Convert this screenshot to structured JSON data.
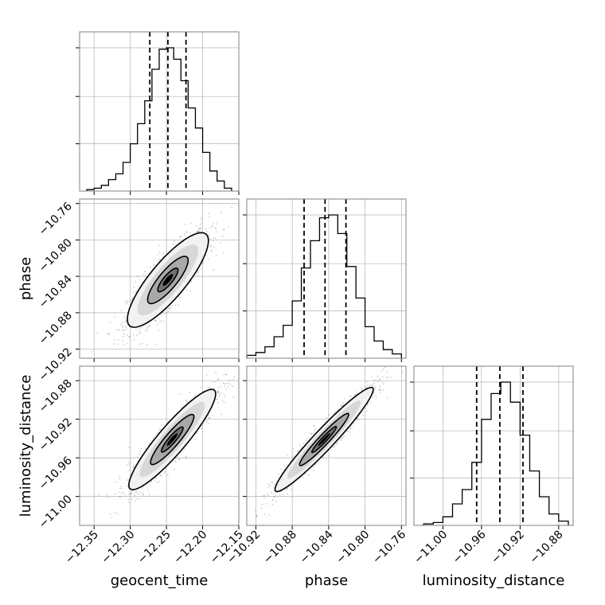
{
  "chart_data": {
    "type": "corner",
    "parameters": [
      "geocent_time",
      "phase",
      "luminosity_distance"
    ],
    "axis_labels": {
      "geocent_time": "geocent_time",
      "phase": "phase",
      "luminosity_distance": "luminosity_distance"
    },
    "ranges": {
      "geocent_time": [
        -12.37,
        -12.15
      ],
      "phase": [
        -10.93,
        -10.755
      ],
      "luminosity_distance": [
        -11.03,
        -10.865
      ]
    },
    "ticks": {
      "geocent_time": {
        "values": [
          -12.35,
          -12.3,
          -12.25,
          -12.2,
          -12.15
        ],
        "labels": [
          "−12.35",
          "−12.30",
          "−12.25",
          "−12.20",
          "−12.15"
        ]
      },
      "phase": {
        "values": [
          -10.92,
          -10.88,
          -10.84,
          -10.8,
          -10.76
        ],
        "labels": [
          "−10.92",
          "−10.88",
          "−10.84",
          "−10.80",
          "−10.76"
        ]
      },
      "luminosity_distance": {
        "values": [
          -11.0,
          -10.96,
          -10.92,
          -10.88
        ],
        "labels": [
          "−11.00",
          "−10.96",
          "−10.92",
          "−10.88"
        ]
      }
    },
    "quantiles": {
      "geocent_time": [
        -12.273,
        -12.248,
        -12.223
      ],
      "phase": [
        -10.867,
        -10.844,
        -10.821
      ],
      "luminosity_distance": [
        -10.965,
        -10.941,
        -10.917
      ]
    },
    "histograms": {
      "geocent_time": {
        "bin_edges": [
          -12.36,
          -12.35,
          -12.34,
          -12.33,
          -12.32,
          -12.31,
          -12.3,
          -12.29,
          -12.28,
          -12.27,
          -12.26,
          -12.25,
          -12.24,
          -12.23,
          -12.22,
          -12.21,
          -12.2,
          -12.19,
          -12.18,
          -12.17,
          -12.16
        ],
        "counts": [
          0.01,
          0.02,
          0.04,
          0.08,
          0.12,
          0.2,
          0.33,
          0.47,
          0.63,
          0.85,
          0.99,
          1.0,
          0.92,
          0.77,
          0.58,
          0.44,
          0.27,
          0.14,
          0.07,
          0.02
        ]
      },
      "phase": {
        "bin_edges": [
          -10.93,
          -10.92,
          -10.91,
          -10.9,
          -10.89,
          -10.88,
          -10.87,
          -10.86,
          -10.85,
          -10.84,
          -10.83,
          -10.82,
          -10.81,
          -10.8,
          -10.79,
          -10.78,
          -10.77,
          -10.76
        ],
        "counts": [
          0.02,
          0.04,
          0.08,
          0.15,
          0.23,
          0.4,
          0.63,
          0.82,
          0.98,
          1.0,
          0.87,
          0.64,
          0.42,
          0.22,
          0.12,
          0.06,
          0.03
        ]
      },
      "luminosity_distance": {
        "bin_edges": [
          -11.02,
          -11.01,
          -11.0,
          -10.99,
          -10.98,
          -10.97,
          -10.96,
          -10.95,
          -10.94,
          -10.93,
          -10.92,
          -10.91,
          -10.9,
          -10.89,
          -10.88,
          -10.87
        ],
        "counts": [
          0.01,
          0.02,
          0.06,
          0.15,
          0.25,
          0.44,
          0.74,
          0.92,
          1.0,
          0.86,
          0.63,
          0.38,
          0.2,
          0.08,
          0.03
        ]
      }
    },
    "pairs": [
      {
        "x": "geocent_time",
        "y": "phase",
        "mean": [
          -12.248,
          -10.844
        ],
        "sd": [
          0.028,
          0.026
        ],
        "rho": 0.83,
        "contour_levels_sigma": [
          0.5,
          1.0,
          1.5,
          2.0
        ],
        "contour_fill": [
          "#000000",
          "#707070",
          "#a8a8a8",
          "#d8d8d8",
          "#f2f2f2"
        ],
        "n_points": 1400
      },
      {
        "x": "geocent_time",
        "y": "luminosity_distance",
        "mean": [
          -12.242,
          -10.941
        ],
        "sd": [
          0.03,
          0.026
        ],
        "rho": 0.91,
        "contour_levels_sigma": [
          0.5,
          1.0,
          1.5,
          2.0
        ],
        "contour_fill": [
          "#000000",
          "#707070",
          "#a8a8a8",
          "#d8d8d8",
          "#f2f2f2"
        ],
        "n_points": 1400
      },
      {
        "x": "phase",
        "y": "luminosity_distance",
        "mean": [
          -10.845,
          -10.941
        ],
        "sd": [
          0.027,
          0.027
        ],
        "rho": 0.96,
        "contour_levels_sigma": [
          0.5,
          1.0,
          1.5,
          2.0
        ],
        "contour_fill": [
          "#000000",
          "#707070",
          "#a8a8a8",
          "#d8d8d8",
          "#f2f2f2"
        ],
        "n_points": 1400
      }
    ],
    "grid": true,
    "colors": {
      "line": "#000000",
      "grid": "#b0b0b0",
      "scatter": "#555555",
      "frame": "#808080"
    }
  }
}
